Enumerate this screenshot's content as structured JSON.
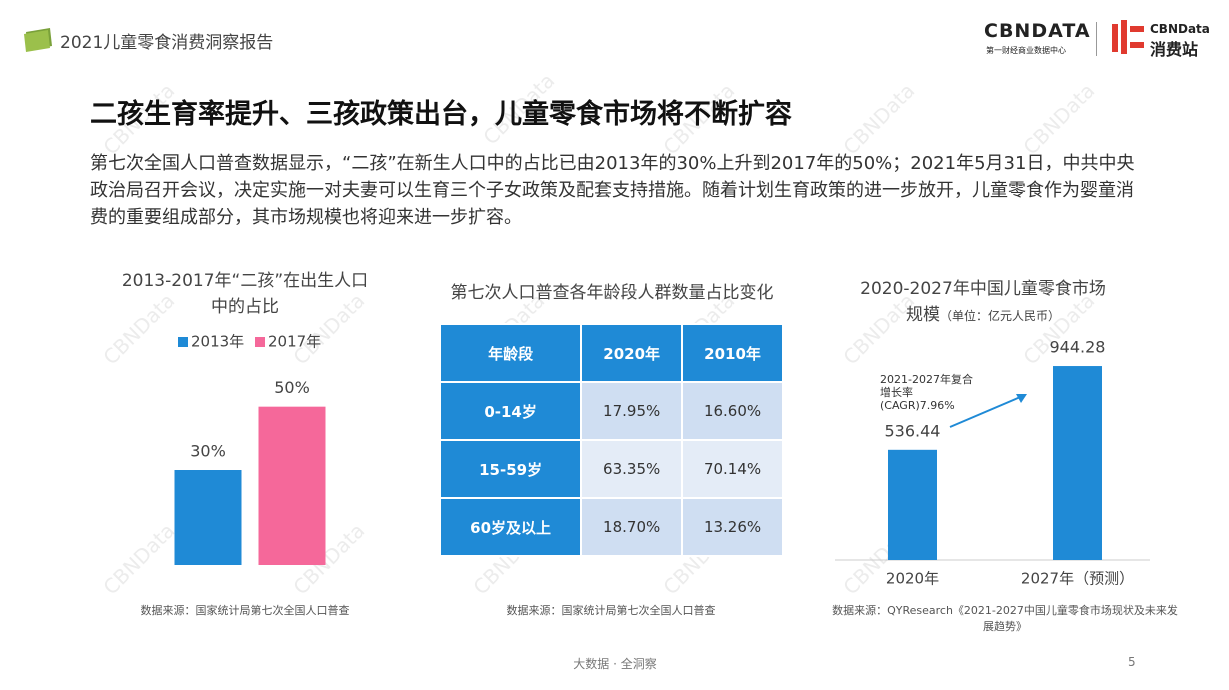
{
  "header": {
    "report_title": "2021儿童零食消费洞察报告",
    "logo_main": "CBNDATA",
    "logo_main_sub": "第一财经商业数据中心",
    "logo_second": "CBNData",
    "logo_second_sub": "消费站"
  },
  "title": "二孩生育率提升、三孩政策出台，儿童零食市场将不断扩容",
  "paragraph": "第七次全国人口普查数据显示，“二孩”在新生人口中的占比已由2013年的30%上升到2017年的50%；2021年5月31日，中共中央政治局召开会议，决定实施一对夫妻可以生育三个子女政策及配套支持措施。随着计划生育政策的进一步放开，儿童零食作为婴童消费的重要组成部分，其市场规模也将迎来进一步扩容。",
  "watermark": "CBNData",
  "chart_data": [
    {
      "type": "bar",
      "title": "2013-2017年“二孩”在出生人口中的占比",
      "categories": [
        null
      ],
      "series": [
        {
          "name": "2013年",
          "color": "#1f8ad6",
          "values": [
            30
          ],
          "value_labels": [
            "30%"
          ]
        },
        {
          "name": "2017年",
          "color": "#f5689a",
          "values": [
            50
          ],
          "value_labels": [
            "50%"
          ]
        }
      ],
      "ylim": [
        0,
        60
      ],
      "legend": "top-left",
      "source": "数据来源：国家统计局第七次全国人口普查"
    },
    {
      "type": "bar",
      "title": "2020-2027年中国儿童零食市场规模",
      "subtitle": "（单位：亿元人民币）",
      "categories": [
        "2020年",
        "2027年（预测）"
      ],
      "values": [
        536.44,
        944.28
      ],
      "color": "#1f8ad6",
      "ylim": [
        0,
        1000
      ],
      "annotation": "2021-2027年复合增长率(CAGR)7.96%",
      "source": "数据来源：QYResearch《2021-2027中国儿童零食市场现状及未来发展趋势》"
    }
  ],
  "table": {
    "title": "第七次人口普查各年龄段人群数量占比变化",
    "header": [
      "年龄段",
      "2020年",
      "2010年"
    ],
    "rows": [
      [
        "0-14岁",
        "17.95%",
        "16.60%"
      ],
      [
        "15-59岁",
        "63.35%",
        "70.14%"
      ],
      [
        "60岁及以上",
        "18.70%",
        "13.26%"
      ]
    ],
    "source": "数据来源：国家统计局第七次全国人口普查"
  },
  "footer": {
    "slogan": "大数据 · 全洞察",
    "page": "5"
  }
}
